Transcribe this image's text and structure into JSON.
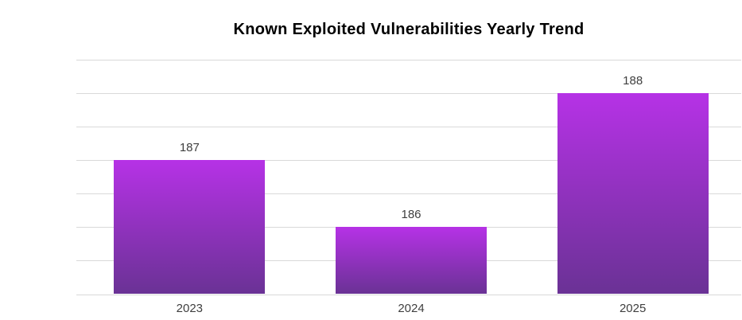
{
  "chart_data": {
    "type": "bar",
    "title": "Known Exploited Vulnerabilities Yearly Trend",
    "categories": [
      "2023",
      "2024",
      "2025"
    ],
    "values": [
      187,
      186,
      188
    ],
    "xlabel": "",
    "ylabel": "",
    "ylim": [
      185,
      188.5
    ],
    "gridline_step": 0.5,
    "grid": true,
    "y_axis_labels_visible": false,
    "legend_position": "none",
    "data_labels_visible": true,
    "colors": {
      "bar_gradient_top": "#b632e6",
      "bar_gradient_bottom": "#6a3295",
      "gridline": "#d9d9d9",
      "title_text": "#000000",
      "label_text": "#3f3f3f",
      "background": "#ffffff"
    }
  }
}
